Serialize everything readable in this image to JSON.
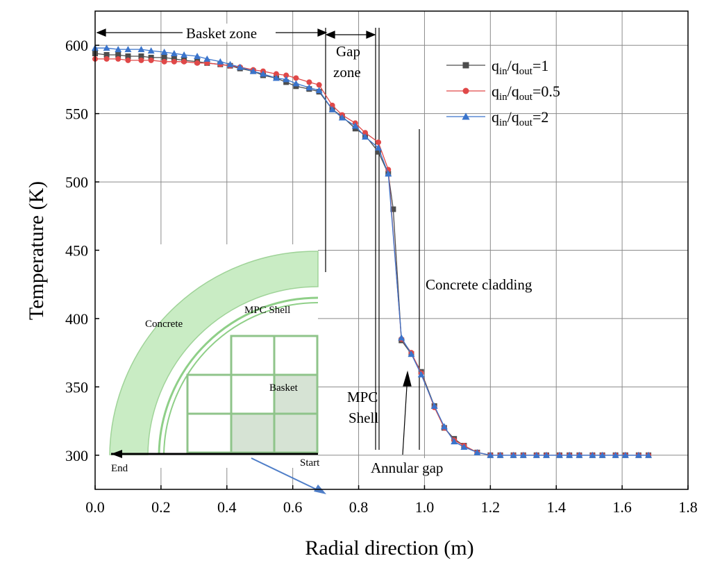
{
  "colors": {
    "series_1": "#4d4d4d",
    "series_2": "#e04848",
    "series_3": "#3a74cc",
    "inset_fill": "#c9ecc4",
    "inset_stroke": "#8fcf88",
    "inset_basket_fill": "#d6e3d4",
    "pointer": "#4f7ec8"
  },
  "chart_data": {
    "type": "line",
    "xlabel": "Radial direction (m)",
    "ylabel": "Temperature (K)",
    "xlim": [
      0.0,
      1.8
    ],
    "ylim": [
      275,
      625
    ],
    "xticks": [
      "0.0",
      "0.2",
      "0.4",
      "0.6",
      "0.8",
      "1.0",
      "1.2",
      "1.4",
      "1.6",
      "1.8"
    ],
    "yticks": [
      "300",
      "350",
      "400",
      "450",
      "500",
      "550",
      "600"
    ],
    "grid": true,
    "legend_position": "top-right",
    "series": [
      {
        "legend": {
          "base": "q",
          "sub1": "in",
          "mid": "/q",
          "sub2": "out",
          "tail": "=1"
        },
        "marker": "square",
        "color": "#4d4d4d",
        "x": [
          0.0,
          0.035,
          0.07,
          0.1,
          0.14,
          0.17,
          0.21,
          0.24,
          0.27,
          0.31,
          0.34,
          0.38,
          0.41,
          0.44,
          0.48,
          0.51,
          0.55,
          0.58,
          0.61,
          0.65,
          0.68,
          0.72,
          0.75,
          0.79,
          0.82,
          0.86,
          0.89,
          0.905,
          0.93,
          0.96,
          0.99,
          1.03,
          1.06,
          1.09,
          1.12,
          1.16,
          1.2,
          1.23,
          1.27,
          1.3,
          1.34,
          1.37,
          1.41,
          1.44,
          1.47,
          1.51,
          1.54,
          1.58,
          1.61,
          1.65,
          1.68
        ],
        "y": [
          594,
          593,
          593,
          592,
          592,
          591,
          591,
          590,
          589,
          588,
          587,
          586,
          585,
          583,
          581,
          578,
          576,
          573,
          570,
          568,
          566,
          553,
          548,
          539,
          534,
          522,
          506,
          480,
          384,
          374,
          361,
          336,
          320,
          312,
          307,
          302,
          300,
          300,
          300,
          300,
          300,
          300,
          300,
          300,
          300,
          300,
          300,
          300,
          300,
          300,
          300
        ]
      },
      {
        "legend": {
          "base": "q",
          "sub1": "in",
          "mid": "/q",
          "sub2": "out",
          "tail": "=0.5"
        },
        "marker": "circle",
        "color": "#e04848",
        "x": [
          0.0,
          0.035,
          0.07,
          0.1,
          0.14,
          0.17,
          0.21,
          0.24,
          0.27,
          0.31,
          0.34,
          0.38,
          0.41,
          0.44,
          0.48,
          0.51,
          0.55,
          0.58,
          0.61,
          0.65,
          0.68,
          0.72,
          0.75,
          0.79,
          0.82,
          0.86,
          0.89,
          0.93,
          0.96,
          0.99,
          1.03,
          1.06,
          1.09,
          1.12,
          1.16,
          1.2,
          1.23,
          1.27,
          1.3,
          1.34,
          1.37,
          1.41,
          1.44,
          1.47,
          1.51,
          1.54,
          1.58,
          1.61,
          1.65,
          1.68
        ],
        "y": [
          590,
          590,
          590,
          589,
          589,
          589,
          588,
          588,
          588,
          587,
          587,
          586,
          585,
          584,
          582,
          581,
          579,
          578,
          576,
          573,
          571,
          556,
          549,
          543,
          536,
          529,
          509,
          385,
          375,
          360,
          335,
          320,
          311,
          307,
          302,
          300,
          300,
          300,
          300,
          300,
          300,
          300,
          300,
          300,
          300,
          300,
          300,
          300,
          300,
          300
        ]
      },
      {
        "legend": {
          "base": "q",
          "sub1": "in",
          "mid": "/q",
          "sub2": "out",
          "tail": "=2"
        },
        "marker": "triangle",
        "color": "#3a74cc",
        "x": [
          0.0,
          0.035,
          0.07,
          0.1,
          0.14,
          0.17,
          0.21,
          0.24,
          0.27,
          0.31,
          0.34,
          0.38,
          0.41,
          0.44,
          0.48,
          0.51,
          0.55,
          0.58,
          0.61,
          0.65,
          0.68,
          0.72,
          0.75,
          0.79,
          0.82,
          0.86,
          0.89,
          0.93,
          0.96,
          0.99,
          1.03,
          1.06,
          1.09,
          1.12,
          1.16,
          1.2,
          1.23,
          1.27,
          1.3,
          1.34,
          1.37,
          1.41,
          1.44,
          1.47,
          1.51,
          1.54,
          1.58,
          1.61,
          1.65,
          1.68
        ],
        "y": [
          598,
          598,
          597,
          597,
          597,
          596,
          595,
          594,
          593,
          592,
          590,
          588,
          586,
          584,
          581,
          579,
          576,
          575,
          572,
          569,
          567,
          553,
          547,
          541,
          533,
          525,
          506,
          386,
          374,
          359,
          336,
          321,
          310,
          306,
          302,
          300,
          300,
          300,
          300,
          300,
          300,
          300,
          300,
          300,
          300,
          300,
          300,
          300,
          300,
          300
        ]
      }
    ],
    "annotations": {
      "basket_zone": "Basket zone",
      "gap_zone_1": "Gap",
      "gap_zone_2": "zone",
      "concrete_cladding": "Concrete cladding",
      "mpc_shell_1": "MPC",
      "mpc_shell_2": "Shell",
      "annular_gap": "Annular gap"
    },
    "inset": {
      "concrete": "Concrete",
      "mpc_shell": "MPC Shell",
      "basket": "Basket",
      "start": "Start",
      "end": "End"
    }
  }
}
